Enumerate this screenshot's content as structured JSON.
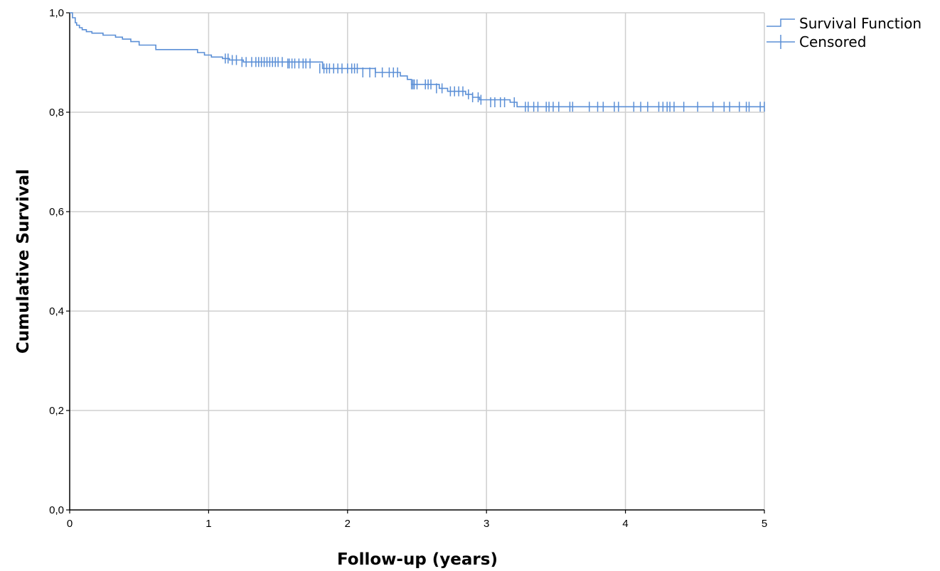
{
  "chart_data": {
    "type": "line",
    "xlabel": "Follow-up (years)",
    "ylabel": "Cumulative Survival",
    "xlim": [
      0,
      5
    ],
    "ylim": [
      0,
      1
    ],
    "x_ticks": [
      0,
      1,
      2,
      3,
      4,
      5
    ],
    "x_tick_labels": [
      "0",
      "1",
      "2",
      "3",
      "4",
      "5"
    ],
    "y_ticks": [
      0,
      0.2,
      0.4,
      0.6,
      0.8,
      1.0
    ],
    "y_tick_labels": [
      "0,0",
      "0,2",
      "0,4",
      "0,6",
      "0,8",
      "1,0"
    ],
    "grid": true,
    "legend_position": "top-right",
    "color": "#5b8fd6",
    "series": [
      {
        "name": "Survival Function",
        "x": [
          0,
          0.02,
          0.04,
          0.05,
          0.07,
          0.09,
          0.12,
          0.16,
          0.24,
          0.33,
          0.38,
          0.44,
          0.5,
          0.62,
          0.92,
          0.97,
          1.02,
          1.1,
          1.15,
          1.25,
          1.82,
          2.2,
          2.38,
          2.43,
          2.46,
          2.66,
          2.72,
          2.85,
          2.9,
          2.95,
          3.17,
          3.22,
          5.0
        ],
        "y": [
          1.0,
          0.99,
          0.98,
          0.975,
          0.97,
          0.966,
          0.962,
          0.959,
          0.955,
          0.951,
          0.947,
          0.942,
          0.935,
          0.926,
          0.92,
          0.915,
          0.911,
          0.908,
          0.905,
          0.901,
          0.888,
          0.88,
          0.873,
          0.866,
          0.856,
          0.848,
          0.842,
          0.836,
          0.83,
          0.825,
          0.82,
          0.811,
          0.811
        ]
      },
      {
        "name": "Censored",
        "x": [
          1.12,
          1.14,
          1.17,
          1.2,
          1.24,
          1.27,
          1.31,
          1.34,
          1.36,
          1.38,
          1.4,
          1.42,
          1.44,
          1.46,
          1.48,
          1.5,
          1.53,
          1.57,
          1.58,
          1.6,
          1.62,
          1.65,
          1.68,
          1.7,
          1.73,
          1.8,
          1.83,
          1.85,
          1.87,
          1.9,
          1.93,
          1.96,
          2.0,
          2.03,
          2.05,
          2.07,
          2.11,
          2.16,
          2.2,
          2.25,
          2.3,
          2.33,
          2.36,
          2.46,
          2.47,
          2.48,
          2.5,
          2.56,
          2.58,
          2.6,
          2.64,
          2.68,
          2.74,
          2.77,
          2.8,
          2.83,
          2.87,
          2.9,
          2.94,
          2.96,
          3.03,
          3.06,
          3.1,
          3.13,
          3.2,
          3.28,
          3.3,
          3.34,
          3.37,
          3.43,
          3.45,
          3.48,
          3.52,
          3.6,
          3.62,
          3.74,
          3.8,
          3.84,
          3.92,
          3.95,
          4.06,
          4.11,
          4.16,
          4.24,
          4.27,
          4.3,
          4.32,
          4.35,
          4.42,
          4.52,
          4.63,
          4.71,
          4.75,
          4.82,
          4.87,
          4.89,
          4.97,
          5.0
        ],
        "y": [
          0.908,
          0.908,
          0.905,
          0.905,
          0.901,
          0.901,
          0.901,
          0.901,
          0.901,
          0.901,
          0.901,
          0.901,
          0.901,
          0.901,
          0.901,
          0.901,
          0.901,
          0.898,
          0.898,
          0.898,
          0.898,
          0.898,
          0.898,
          0.898,
          0.898,
          0.888,
          0.888,
          0.888,
          0.888,
          0.888,
          0.888,
          0.888,
          0.888,
          0.888,
          0.888,
          0.888,
          0.88,
          0.88,
          0.88,
          0.88,
          0.88,
          0.88,
          0.88,
          0.856,
          0.856,
          0.856,
          0.856,
          0.856,
          0.856,
          0.856,
          0.848,
          0.848,
          0.842,
          0.842,
          0.842,
          0.842,
          0.836,
          0.83,
          0.83,
          0.825,
          0.82,
          0.82,
          0.82,
          0.82,
          0.82,
          0.811,
          0.811,
          0.811,
          0.811,
          0.811,
          0.811,
          0.811,
          0.811,
          0.811,
          0.811,
          0.811,
          0.811,
          0.811,
          0.811,
          0.811,
          0.811,
          0.811,
          0.811,
          0.811,
          0.811,
          0.811,
          0.811,
          0.811,
          0.811,
          0.811,
          0.811,
          0.811,
          0.811,
          0.811,
          0.811,
          0.811,
          0.811,
          0.811
        ]
      }
    ]
  }
}
